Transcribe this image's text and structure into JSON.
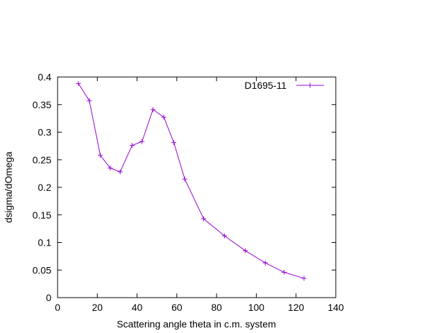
{
  "chart_data": {
    "type": "line",
    "title": "",
    "xlabel": "Scattering angle theta in c.m. system",
    "ylabel": "dsigma/dOmega",
    "xlim": [
      0,
      140
    ],
    "ylim": [
      0,
      0.4
    ],
    "x_ticks": [
      0,
      20,
      40,
      60,
      80,
      100,
      120,
      140
    ],
    "x_tick_labels": [
      "0",
      "20",
      "40",
      "60",
      "80",
      "100",
      "120",
      "140"
    ],
    "y_ticks": [
      0,
      0.05,
      0.1,
      0.15,
      0.2,
      0.25,
      0.3,
      0.35,
      0.4
    ],
    "y_tick_labels": [
      "0",
      "0.05",
      "0.1",
      "0.15",
      "0.2",
      "0.25",
      "0.3",
      "0.35",
      "0.4"
    ],
    "grid": false,
    "legend_position": "top-right",
    "series": [
      {
        "name": "D1695-11",
        "color": "#9400d3",
        "marker": "plus",
        "x": [
          10.5,
          16,
          21.5,
          26.5,
          31.5,
          37.5,
          42.5,
          48,
          53.5,
          58.5,
          64,
          73.5,
          84,
          94.5,
          104.5,
          114,
          124
        ],
        "y": [
          0.388,
          0.357,
          0.258,
          0.235,
          0.228,
          0.276,
          0.283,
          0.341,
          0.327,
          0.281,
          0.215,
          0.143,
          0.112,
          0.085,
          0.063,
          0.046,
          0.035
        ]
      }
    ]
  }
}
